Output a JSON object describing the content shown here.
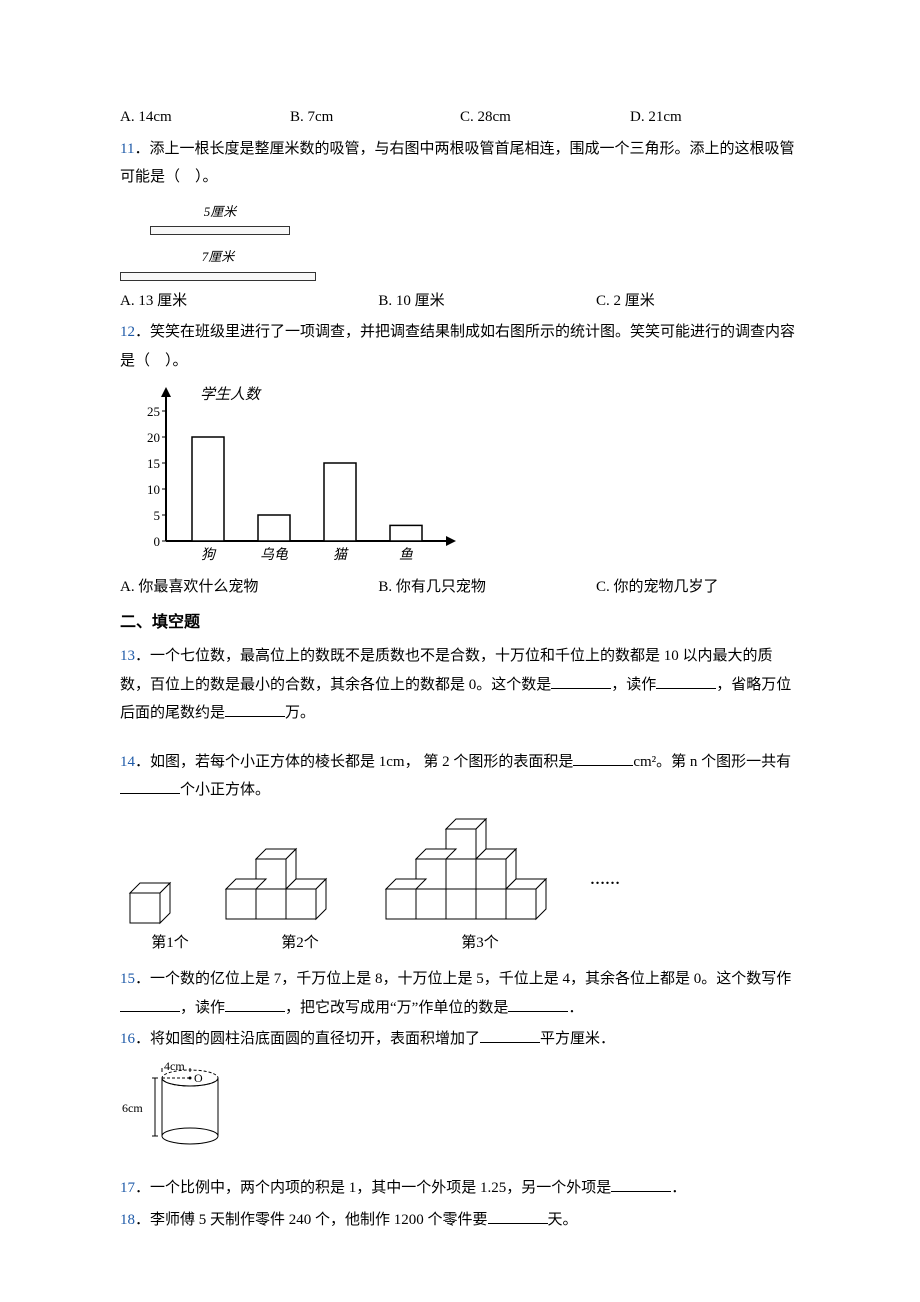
{
  "q10": {
    "opts": {
      "a": "A. 14cm",
      "b": "B. 7cm",
      "c": "C. 28cm",
      "d": "D. 21cm"
    }
  },
  "q11": {
    "num": "11",
    "text": "．添上一根长度是整厘米数的吸管，与右图中两根吸管首尾相连，围成一个三角形。添上的这根吸管可能是（　）。",
    "straw1_label": "5厘米",
    "straw2_label": "7厘米",
    "opts": {
      "a": "A. 13 厘米",
      "b": "B. 10 厘米",
      "c": "C. 2 厘米"
    }
  },
  "q12": {
    "num": "12",
    "text": "．笑笑在班级里进行了一项调查，并把调查结果制成如右图所示的统计图。笑笑可能进行的调查内容是（　）。",
    "chart": {
      "ylabel": "学生人数",
      "y_ticks": [
        0,
        5,
        10,
        15,
        20,
        25
      ],
      "categories": [
        "狗",
        "乌龟",
        "猫",
        "鱼"
      ],
      "values": [
        20,
        5,
        15,
        3
      ],
      "bar_color": "#ffffff",
      "bar_stroke": "#000000",
      "axis_color": "#000000"
    },
    "opts": {
      "a": "A. 你最喜欢什么宠物",
      "b": "B. 你有几只宠物",
      "c": "C. 你的宠物几岁了"
    }
  },
  "section2": "二、填空题",
  "q13": {
    "num": "13",
    "t1": "．一个七位数，最高位上的数既不是质数也不是合数，十万位和千位上的数都是 10 以内最大的质数，百位上的数是最小的合数，其余各位上的数都是 0。这个数是",
    "t2": "，读作",
    "t3": "，省略万位后面的尾数约是",
    "t4": "万。"
  },
  "q14": {
    "num": "14",
    "t1": "．如图，若每个小正方体的棱长都是 1cm， 第 2 个图形的表面积是",
    "t2": "cm²。第 n 个图形一共有",
    "t3": "个小正方体。",
    "labels": {
      "l1": "第1个",
      "l2": "第2个",
      "l3": "第3个"
    },
    "dots": "……"
  },
  "q15": {
    "num": "15",
    "t1": "．一个数的亿位上是 7，千万位上是 8，十万位上是 5，千位上是 4，其余各位上都是 0。这个数写作",
    "t2": "，读作",
    "t3": "，把它改写成用“万”作单位的数是",
    "t4": "．"
  },
  "q16": {
    "num": "16",
    "t1": "．将如图的圆柱沿底面圆的直径切开，表面积增加了",
    "t2": "平方厘米．",
    "cyl": {
      "d_label": "4cm",
      "h_label": "6cm"
    }
  },
  "q17": {
    "num": "17",
    "t1": "．一个比例中，两个内项的积是 1，其中一个外项是 1.25，另一个外项是",
    "t2": "．"
  },
  "q18": {
    "num": "18",
    "t1": "．李师傅 5 天制作零件 240 个，他制作 1200 个零件要",
    "t2": "天。"
  }
}
